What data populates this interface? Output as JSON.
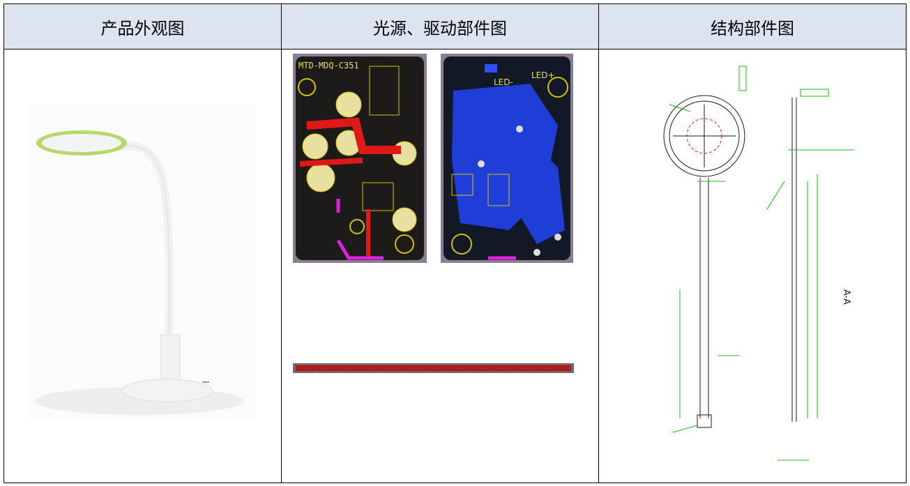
{
  "table": {
    "headers": [
      "产品外观图",
      "光源、驱动部件图",
      "结构部件图"
    ]
  },
  "images": {
    "driver_board_label": "MTD-MDQ-C351",
    "led_minus": "LED-",
    "led_plus": "LED+",
    "section_label": "A-A"
  }
}
